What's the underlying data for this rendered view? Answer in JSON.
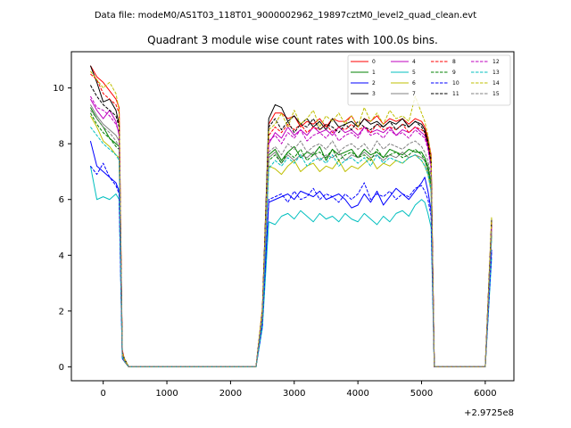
{
  "chart_data": {
    "type": "line",
    "suptitle": "Data file: modeM0/AS1T03_118T01_9000002962_19897cztM0_level2_quad_clean.evt",
    "title": "Quadrant 3 module wise count rates with 100.0s bins.",
    "xlabel": "",
    "ylabel": "",
    "x_offset_label": "+2.9725e8",
    "xlim": [
      -500,
      6450
    ],
    "ylim": [
      -0.5,
      11.3
    ],
    "x_ticks": [
      0,
      1000,
      2000,
      3000,
      4000,
      5000,
      6000
    ],
    "y_ticks": [
      0,
      2,
      4,
      6,
      8,
      10
    ],
    "grid": false,
    "legend_position": "top-right",
    "x": [
      -200,
      -100,
      0,
      100,
      200,
      250,
      300,
      330,
      400,
      2400,
      2500,
      2600,
      2700,
      2800,
      2900,
      3000,
      3100,
      3200,
      3300,
      3400,
      3500,
      3600,
      3700,
      3800,
      3900,
      4000,
      4100,
      4200,
      4300,
      4400,
      4500,
      4600,
      4700,
      4800,
      4900,
      5000,
      5050,
      5100,
      5150,
      5200,
      5300,
      6000,
      6100
    ],
    "series": [
      {
        "name": "0",
        "color": "#ff0000",
        "dash": "solid",
        "values": [
          10.8,
          10.4,
          10.2,
          9.9,
          9.6,
          9.3,
          0.6,
          0.3,
          0.0,
          0.0,
          2.1,
          8.7,
          9.1,
          9.1,
          8.9,
          9.0,
          8.6,
          8.8,
          8.7,
          8.9,
          8.6,
          8.9,
          8.8,
          8.8,
          9.0,
          8.6,
          8.9,
          8.8,
          9.0,
          8.7,
          8.9,
          8.8,
          8.9,
          8.7,
          8.9,
          8.8,
          8.6,
          8.2,
          7.6,
          0.0,
          0.0,
          0.0,
          5.3
        ]
      },
      {
        "name": "1",
        "color": "#008000",
        "dash": "solid",
        "values": [
          9.3,
          8.9,
          8.6,
          8.2,
          8.0,
          7.9,
          0.4,
          0.2,
          0.0,
          0.0,
          1.8,
          7.6,
          7.8,
          7.4,
          7.7,
          7.9,
          7.5,
          7.7,
          7.6,
          7.9,
          7.4,
          7.8,
          7.6,
          7.7,
          7.8,
          7.5,
          7.8,
          7.6,
          7.7,
          7.5,
          7.8,
          7.7,
          7.6,
          7.8,
          7.7,
          7.7,
          7.5,
          7.2,
          6.6,
          0.0,
          0.0,
          0.0,
          4.9
        ]
      },
      {
        "name": "2",
        "color": "#0000ff",
        "dash": "solid",
        "values": [
          8.1,
          7.2,
          7.0,
          6.8,
          6.6,
          6.3,
          0.3,
          0.2,
          0.0,
          0.0,
          1.6,
          5.9,
          6.0,
          6.1,
          6.2,
          6.0,
          6.3,
          6.2,
          6.1,
          6.3,
          6.0,
          6.1,
          6.2,
          6.0,
          5.7,
          5.8,
          6.2,
          5.9,
          6.3,
          5.8,
          6.1,
          6.4,
          6.2,
          6.0,
          6.3,
          6.6,
          6.8,
          6.3,
          5.6,
          0.0,
          0.0,
          0.0,
          4.2
        ]
      },
      {
        "name": "3",
        "color": "#000000",
        "dash": "solid",
        "values": [
          10.8,
          10.2,
          9.5,
          9.6,
          9.2,
          8.7,
          0.5,
          0.3,
          0.0,
          0.0,
          2.0,
          8.9,
          9.4,
          9.3,
          8.8,
          9.0,
          8.7,
          8.9,
          8.6,
          8.8,
          8.5,
          8.9,
          8.6,
          8.7,
          8.8,
          8.6,
          8.9,
          8.7,
          8.8,
          8.6,
          8.8,
          8.7,
          8.9,
          8.6,
          8.8,
          8.7,
          8.5,
          8.1,
          7.4,
          0.0,
          0.0,
          0.0,
          5.3
        ]
      },
      {
        "name": "4",
        "color": "#bf00bf",
        "dash": "solid",
        "values": [
          9.6,
          9.2,
          8.9,
          9.2,
          8.8,
          8.3,
          0.4,
          0.2,
          0.0,
          0.0,
          1.9,
          8.0,
          8.4,
          8.2,
          8.6,
          8.3,
          8.5,
          8.3,
          8.6,
          8.4,
          8.5,
          8.3,
          8.6,
          8.4,
          8.5,
          8.3,
          8.6,
          8.4,
          8.5,
          8.4,
          8.6,
          8.3,
          8.5,
          8.4,
          8.6,
          8.4,
          8.3,
          7.9,
          7.2,
          0.0,
          0.0,
          0.0,
          5.1
        ]
      },
      {
        "name": "5",
        "color": "#00bfbf",
        "dash": "solid",
        "values": [
          7.2,
          6.0,
          6.1,
          6.0,
          6.2,
          6.0,
          0.3,
          0.2,
          0.0,
          0.0,
          1.4,
          5.2,
          5.1,
          5.4,
          5.5,
          5.3,
          5.6,
          5.4,
          5.2,
          5.5,
          5.3,
          5.4,
          5.2,
          5.5,
          5.3,
          5.2,
          5.5,
          5.3,
          5.1,
          5.4,
          5.2,
          5.5,
          5.6,
          5.4,
          5.8,
          6.0,
          5.9,
          5.5,
          5.0,
          0.0,
          0.0,
          0.0,
          3.9
        ]
      },
      {
        "name": "6",
        "color": "#bfbf00",
        "dash": "solid",
        "values": [
          9.0,
          8.6,
          8.1,
          7.9,
          7.6,
          7.5,
          0.4,
          0.2,
          0.0,
          0.0,
          1.7,
          7.2,
          7.1,
          6.9,
          7.2,
          7.4,
          7.0,
          7.2,
          7.3,
          7.0,
          7.2,
          7.1,
          7.4,
          7.0,
          7.2,
          7.1,
          7.3,
          7.5,
          7.1,
          7.3,
          7.2,
          7.4,
          7.3,
          7.5,
          7.6,
          7.4,
          7.2,
          6.9,
          6.3,
          0.0,
          0.0,
          0.0,
          4.7
        ]
      },
      {
        "name": "7",
        "color": "#808080",
        "dash": "solid",
        "values": [
          9.4,
          9.0,
          8.7,
          8.5,
          8.3,
          8.1,
          0.4,
          0.2,
          0.0,
          0.0,
          1.8,
          7.5,
          7.7,
          7.3,
          7.6,
          7.4,
          7.6,
          7.5,
          7.7,
          7.4,
          7.6,
          7.5,
          7.7,
          7.4,
          7.6,
          7.5,
          7.7,
          7.5,
          7.6,
          7.4,
          7.6,
          7.5,
          7.7,
          7.5,
          7.6,
          7.5,
          7.4,
          7.0,
          6.5,
          0.0,
          0.0,
          0.0,
          4.8
        ]
      },
      {
        "name": "8",
        "color": "#ff0000",
        "dash": "dashed",
        "values": [
          10.5,
          10.3,
          9.8,
          9.6,
          9.4,
          9.1,
          0.5,
          0.3,
          0.0,
          0.0,
          2.0,
          8.3,
          8.6,
          8.4,
          8.7,
          8.5,
          8.7,
          8.4,
          8.6,
          8.5,
          8.7,
          8.4,
          8.6,
          8.5,
          8.7,
          8.5,
          8.6,
          8.4,
          8.7,
          8.5,
          8.6,
          8.5,
          8.7,
          8.4,
          8.6,
          8.5,
          8.4,
          8.0,
          7.3,
          0.0,
          0.0,
          0.0,
          5.2
        ]
      },
      {
        "name": "9",
        "color": "#008000",
        "dash": "dashed",
        "values": [
          9.1,
          8.7,
          8.4,
          8.2,
          7.9,
          7.8,
          0.4,
          0.2,
          0.0,
          0.0,
          1.8,
          7.4,
          7.6,
          7.3,
          7.7,
          7.5,
          7.8,
          7.4,
          7.6,
          7.7,
          7.5,
          7.8,
          7.4,
          7.6,
          7.7,
          7.5,
          7.6,
          7.4,
          7.8,
          7.5,
          7.6,
          7.7,
          7.5,
          7.6,
          7.8,
          7.6,
          7.4,
          7.1,
          6.5,
          0.0,
          0.0,
          0.0,
          4.8
        ]
      },
      {
        "name": "10",
        "color": "#0000ff",
        "dash": "dashed",
        "values": [
          7.2,
          6.9,
          7.3,
          6.8,
          6.5,
          6.2,
          0.3,
          0.2,
          0.0,
          0.0,
          1.5,
          6.0,
          6.1,
          6.2,
          5.9,
          6.3,
          6.0,
          6.1,
          6.4,
          6.0,
          6.2,
          6.1,
          5.9,
          6.2,
          6.0,
          6.2,
          6.6,
          6.0,
          6.2,
          6.1,
          6.3,
          6.0,
          6.2,
          6.1,
          6.4,
          6.5,
          6.3,
          6.0,
          5.4,
          0.0,
          0.0,
          0.0,
          4.1
        ]
      },
      {
        "name": "11",
        "color": "#000000",
        "dash": "dashed",
        "values": [
          10.1,
          9.7,
          9.4,
          9.2,
          9.0,
          8.6,
          0.5,
          0.3,
          0.0,
          0.0,
          2.0,
          8.6,
          8.9,
          8.5,
          8.8,
          8.4,
          8.7,
          8.6,
          8.9,
          8.5,
          8.7,
          8.6,
          8.4,
          8.7,
          8.5,
          8.8,
          8.6,
          8.5,
          8.7,
          8.6,
          8.8,
          8.5,
          8.7,
          8.6,
          8.8,
          8.6,
          8.4,
          8.0,
          7.3,
          0.0,
          0.0,
          0.0,
          5.2
        ]
      },
      {
        "name": "12",
        "color": "#bf00bf",
        "dash": "dashed",
        "values": [
          9.7,
          9.3,
          9.2,
          9.0,
          8.7,
          8.4,
          0.4,
          0.2,
          0.0,
          0.0,
          1.9,
          8.1,
          8.3,
          8.0,
          8.4,
          8.2,
          8.5,
          8.1,
          8.3,
          8.4,
          8.2,
          8.5,
          8.1,
          8.3,
          8.4,
          8.2,
          8.6,
          8.3,
          8.4,
          8.2,
          8.5,
          8.3,
          8.4,
          8.2,
          8.5,
          8.3,
          8.2,
          7.8,
          7.1,
          0.0,
          0.0,
          0.0,
          5.0
        ]
      },
      {
        "name": "13",
        "color": "#00bfbf",
        "dash": "dashed",
        "values": [
          8.6,
          8.3,
          8.0,
          7.8,
          7.6,
          7.4,
          0.4,
          0.2,
          0.0,
          0.0,
          1.7,
          7.1,
          7.4,
          7.2,
          7.5,
          7.3,
          7.6,
          7.2,
          7.4,
          7.5,
          7.3,
          7.6,
          7.2,
          7.4,
          7.5,
          7.3,
          7.5,
          7.2,
          7.6,
          7.3,
          7.5,
          7.4,
          7.3,
          7.5,
          7.6,
          7.4,
          7.2,
          6.9,
          6.3,
          0.0,
          0.0,
          0.0,
          4.6
        ]
      },
      {
        "name": "14",
        "color": "#bfbf00",
        "dash": "dashed",
        "values": [
          10.6,
          10.3,
          10.0,
          10.2,
          9.8,
          9.2,
          0.5,
          0.3,
          0.0,
          0.0,
          2.1,
          8.5,
          8.7,
          9.1,
          8.6,
          9.2,
          8.7,
          8.9,
          9.2,
          8.6,
          9.0,
          8.8,
          9.1,
          8.7,
          9.0,
          8.6,
          9.3,
          8.8,
          9.1,
          8.7,
          9.2,
          8.9,
          9.0,
          8.8,
          9.7,
          9.1,
          8.8,
          8.3,
          7.5,
          0.0,
          0.0,
          0.0,
          5.4
        ]
      },
      {
        "name": "15",
        "color": "#808080",
        "dash": "dashed",
        "values": [
          9.2,
          8.9,
          8.6,
          8.4,
          8.1,
          7.9,
          0.4,
          0.2,
          0.0,
          0.0,
          1.8,
          7.7,
          7.9,
          7.6,
          8.0,
          7.8,
          8.1,
          7.7,
          7.9,
          8.0,
          7.8,
          8.1,
          7.7,
          7.9,
          8.0,
          7.8,
          8.0,
          7.7,
          8.1,
          7.8,
          8.0,
          7.9,
          7.8,
          8.0,
          8.1,
          7.9,
          7.7,
          7.4,
          6.8,
          0.0,
          0.0,
          0.0,
          4.9
        ]
      }
    ]
  }
}
